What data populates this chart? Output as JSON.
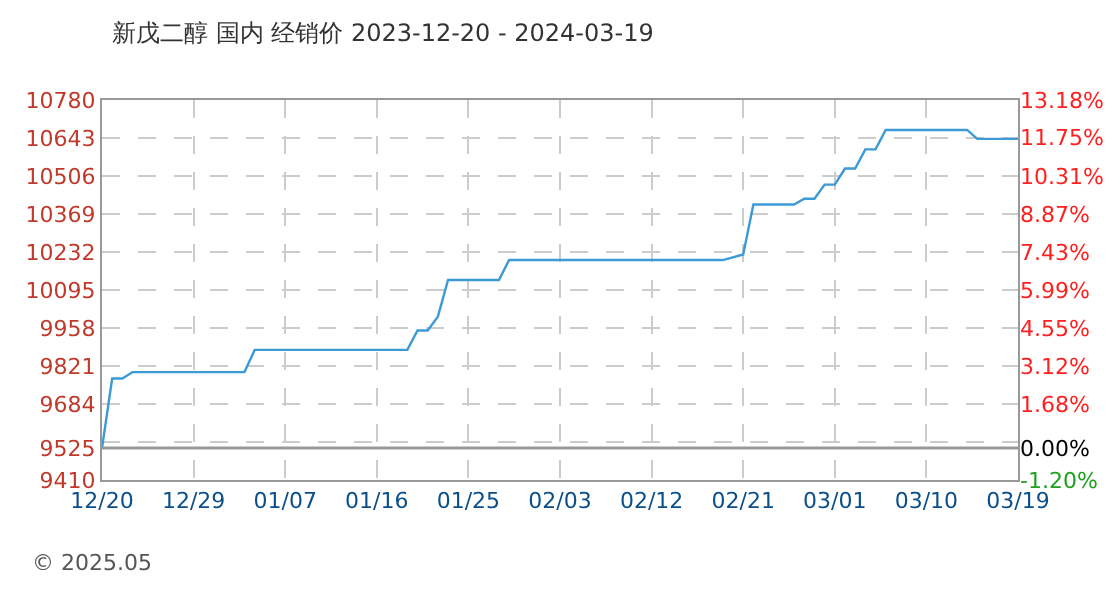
{
  "chart_data": {
    "type": "line",
    "title": "新戊二醇 国内 经销价 2023-12-20 - 2024-03-19",
    "x": [
      "2023-12-20",
      "2023-12-21",
      "2023-12-22",
      "2023-12-23",
      "2024-01-03",
      "2024-01-04",
      "2024-01-19",
      "2024-01-20",
      "2024-01-21",
      "2024-01-22",
      "2024-01-23",
      "2024-01-28",
      "2024-01-29",
      "2024-02-19",
      "2024-02-21",
      "2024-02-22",
      "2024-02-26",
      "2024-02-27",
      "2024-02-28",
      "2024-02-29",
      "2024-03-01",
      "2024-03-02",
      "2024-03-03",
      "2024-03-04",
      "2024-03-05",
      "2024-03-06",
      "2024-03-14",
      "2024-03-15",
      "2024-03-19"
    ],
    "series": [
      {
        "color": "#3c9ad6",
        "values": [
          9525,
          9776,
          9776,
          9799,
          9799,
          9879,
          9879,
          9949,
          9949,
          9999,
          10131,
          10131,
          10203,
          10203,
          10223,
          10403,
          10403,
          10424,
          10424,
          10475,
          10475,
          10533,
          10533,
          10602,
          10602,
          10672,
          10672,
          10640,
          10640
        ]
      }
    ],
    "xlim": [
      "2023-12-20",
      "2024-03-19"
    ],
    "xticks": [
      {
        "value": "2023-12-20",
        "label": "12/20"
      },
      {
        "value": "2023-12-29",
        "label": "12/29"
      },
      {
        "value": "2024-01-07",
        "label": "01/07"
      },
      {
        "value": "2024-01-16",
        "label": "01/16"
      },
      {
        "value": "2024-01-25",
        "label": "01/25"
      },
      {
        "value": "2024-02-03",
        "label": "02/03"
      },
      {
        "value": "2024-02-12",
        "label": "02/12"
      },
      {
        "value": "2024-02-21",
        "label": "02/21"
      },
      {
        "value": "2024-03-01",
        "label": "03/01"
      },
      {
        "value": "2024-03-10",
        "label": "03/10"
      },
      {
        "value": "2024-03-19",
        "label": "03/19"
      }
    ],
    "ylim": [
      9410,
      10780
    ],
    "yticks": [
      9410,
      9525,
      {
        "value": 9547,
        "label": null
      },
      9684,
      9821,
      9958,
      10095,
      10232,
      10369,
      10506,
      10643,
      10780
    ],
    "y2lim": [
      -1.2,
      13.18
    ],
    "y2ticks": [
      {
        "value": -1.2,
        "label": "-1.20%"
      },
      {
        "value": 0,
        "label": "0.00%"
      },
      {
        "value": 1.68,
        "label": "1.68%"
      },
      {
        "value": 3.12,
        "label": "3.12%"
      },
      {
        "value": 4.55,
        "label": "4.55%"
      },
      {
        "value": 5.99,
        "label": "5.99%"
      },
      {
        "value": 7.43,
        "label": "7.43%"
      },
      {
        "value": 8.87,
        "label": "8.87%"
      },
      {
        "value": 10.31,
        "label": "10.31%"
      },
      {
        "value": 11.75,
        "label": "11.75%"
      },
      {
        "value": 13.18,
        "label": "13.18%"
      }
    ],
    "ref_lines": [
      {
        "axis": "y",
        "value": 9525,
        "color": "#999999"
      }
    ],
    "annotations": [
      "© 2025.05"
    ],
    "grid": true,
    "marker": "none",
    "line_style": "solid"
  }
}
